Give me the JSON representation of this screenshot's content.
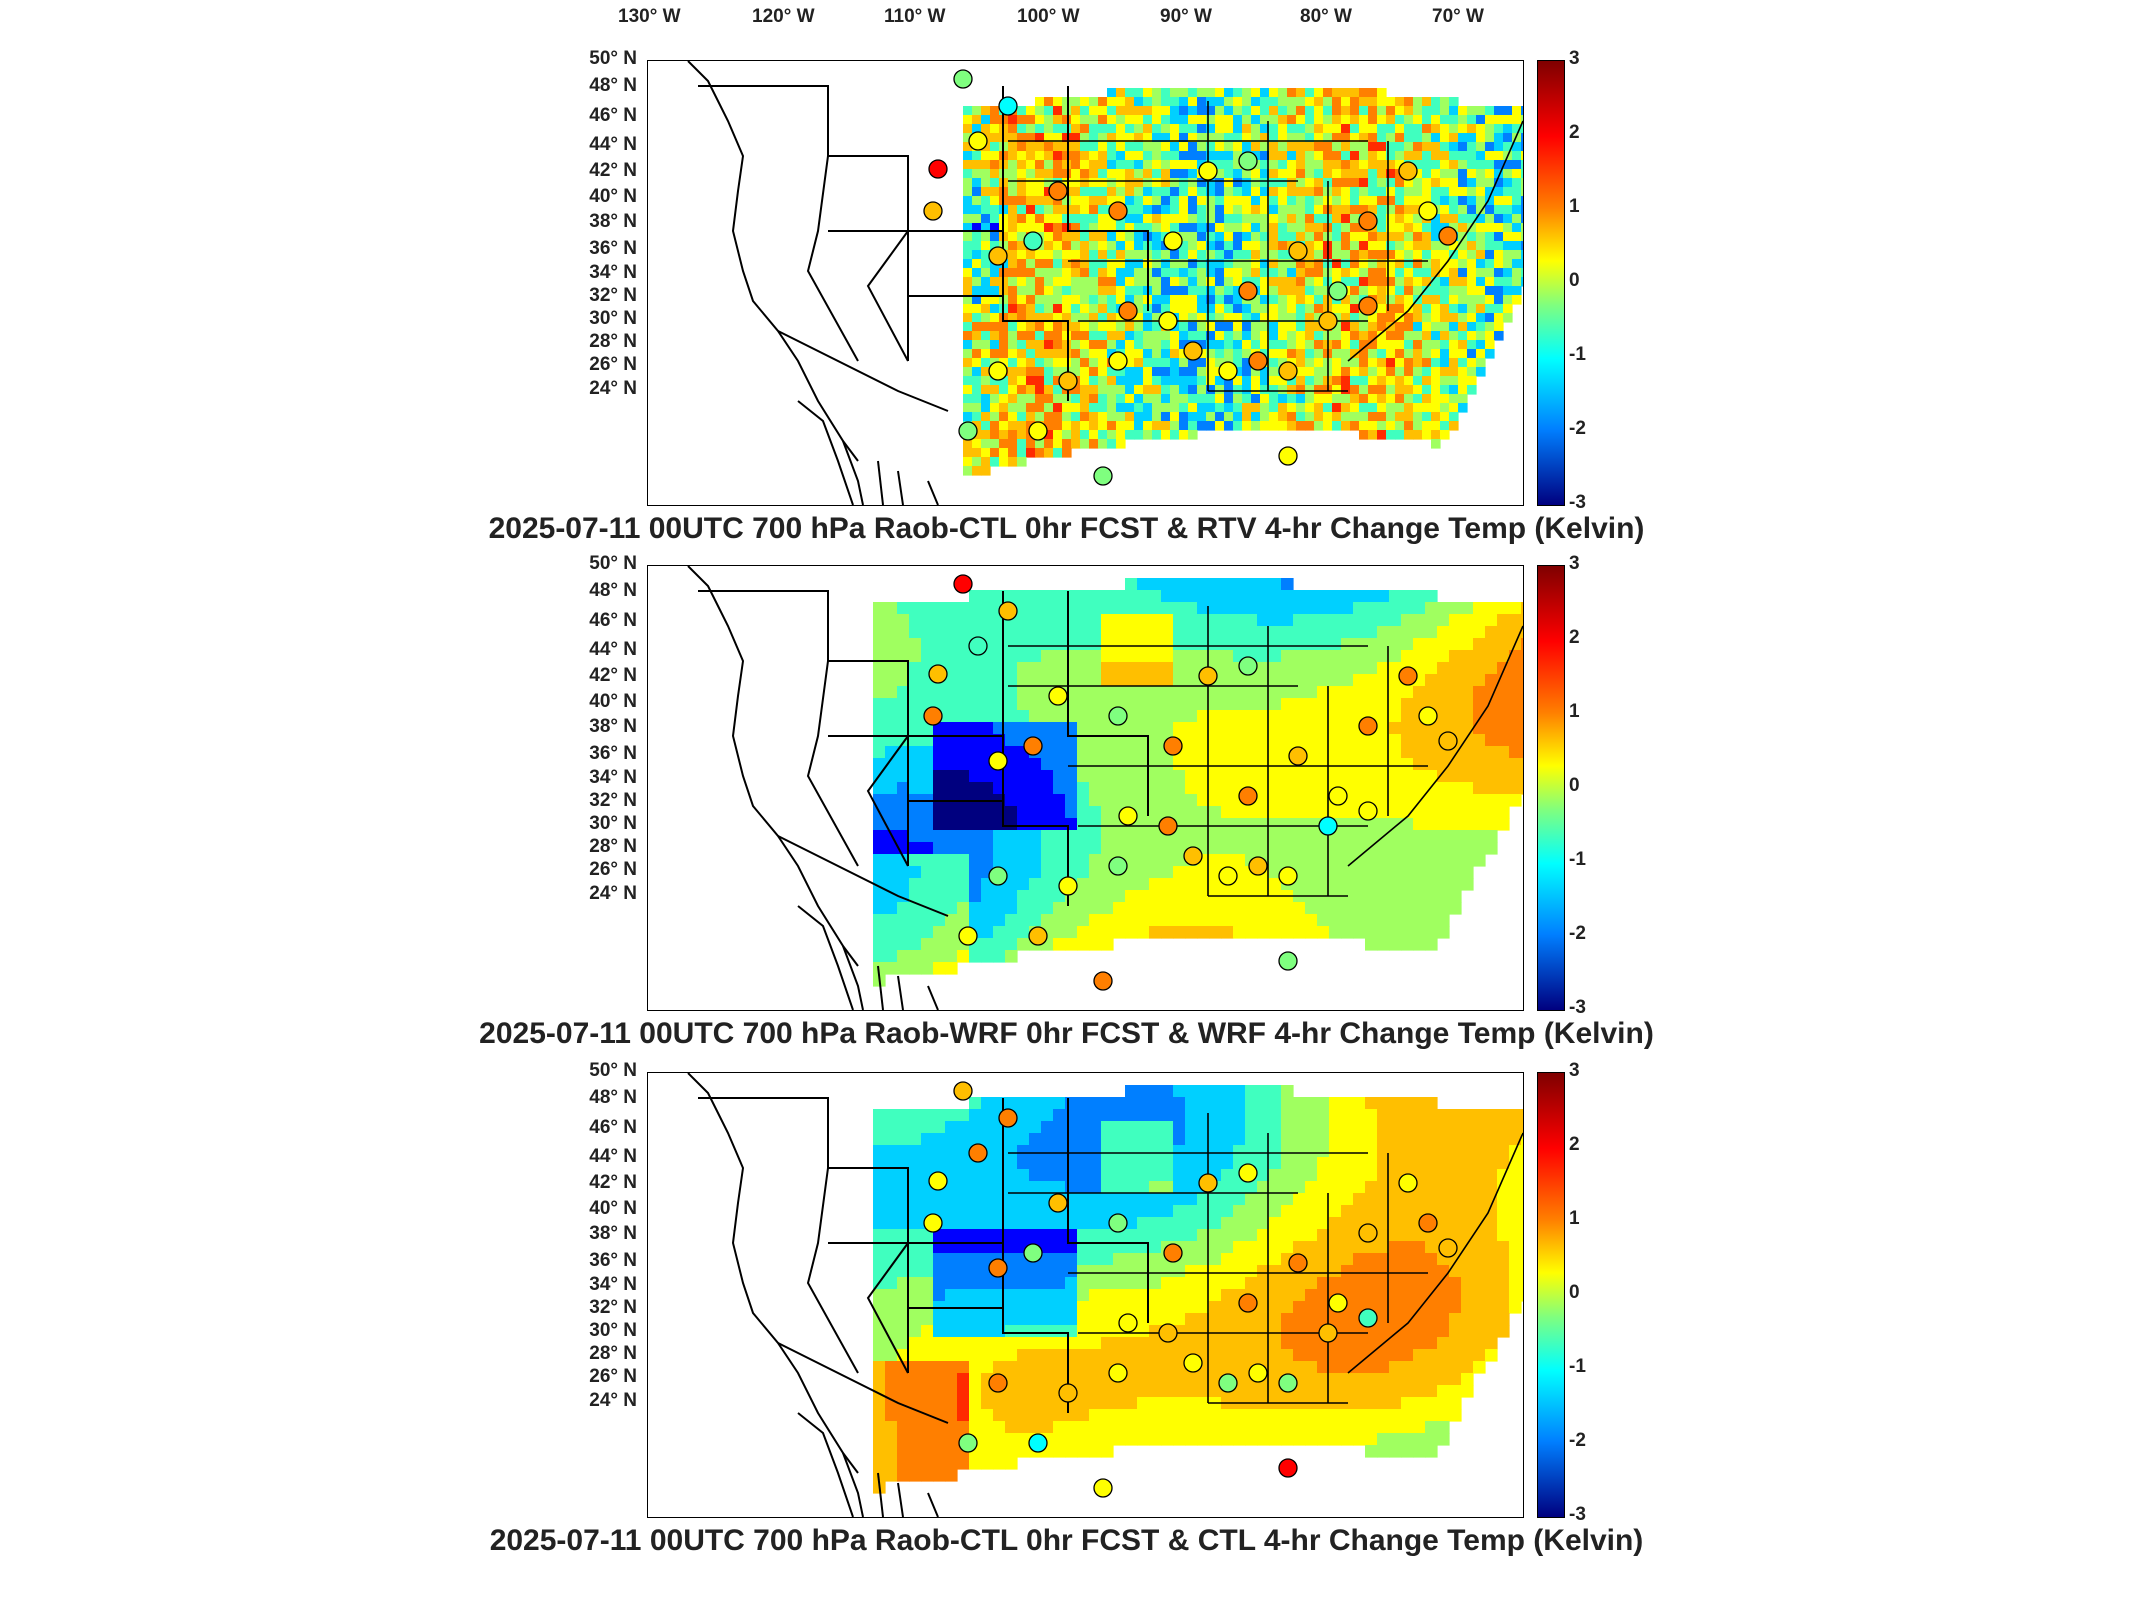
{
  "lon_labels": [
    "130° W",
    "120° W",
    "110° W",
    "100° W",
    "90° W",
    "80° W",
    "70° W"
  ],
  "lat_labels": [
    "50° N",
    "48° N",
    "46° N",
    "44° N",
    "42° N",
    "40° N",
    "38° N",
    "36° N",
    "34° N",
    "32° N",
    "30° N",
    "28° N",
    "26° N",
    "24° N"
  ],
  "colorbar_ticks": [
    "3",
    "2",
    "1",
    "0",
    "-1",
    "-2",
    "-3"
  ],
  "panels": [
    {
      "title": "2025-07-11 00UTC 700 hPa Raob-CTL 0hr FCST & RTV 4-hr Change Temp (Kelvin)"
    },
    {
      "title": "2025-07-11 00UTC 700 hPa Raob-WRF 0hr FCST & WRF 4-hr Change Temp (Kelvin)"
    },
    {
      "title": "2025-07-11 00UTC 700 hPa Raob-CTL 0hr FCST & CTL 4-hr Change Temp (Kelvin)"
    }
  ],
  "colors": {
    "high": "#7f0000",
    "mid_high": "#ff3000",
    "neutral": "#ffff00",
    "mid_low": "#00c8ff",
    "low": "#00007f"
  }
}
